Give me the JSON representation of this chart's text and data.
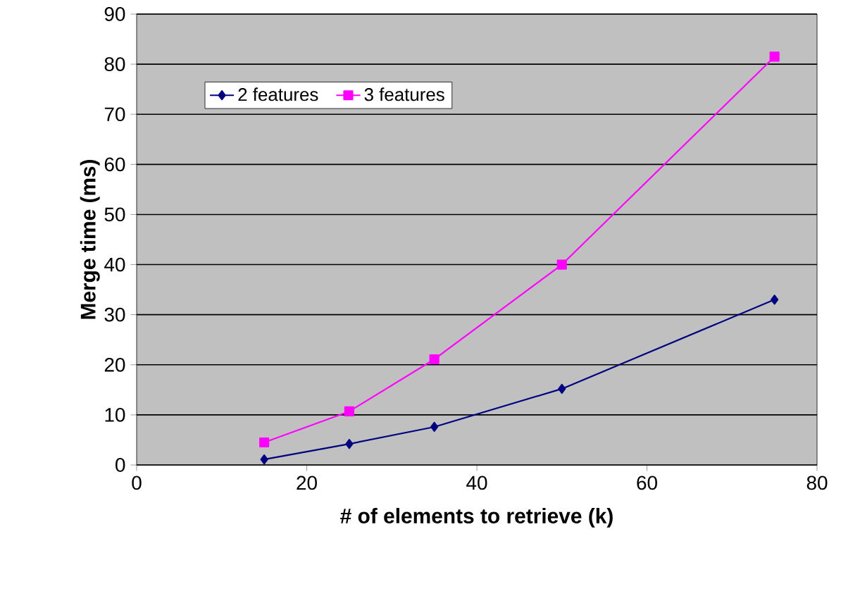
{
  "chart_data": {
    "type": "line",
    "xlabel": "# of elements to retrieve (k)",
    "ylabel": "Merge time (ms)",
    "xlim": [
      0,
      80
    ],
    "xticks": [
      0,
      20,
      40,
      60,
      80
    ],
    "ylim": [
      0,
      90
    ],
    "yticks": [
      0,
      10,
      20,
      30,
      40,
      50,
      60,
      70,
      80,
      90
    ],
    "grid": "y",
    "legend": "top left",
    "series": [
      {
        "name": "2 features",
        "color": "#000080",
        "marker": "diamond",
        "x": [
          15,
          25,
          35,
          50,
          75
        ],
        "values": [
          1.1,
          4.2,
          7.6,
          15.2,
          33
        ]
      },
      {
        "name": "3 features",
        "color": "#ff00ff",
        "marker": "square",
        "x": [
          15,
          25,
          35,
          50,
          75
        ],
        "values": [
          4.5,
          10.7,
          21.1,
          40,
          81.5
        ]
      }
    ]
  }
}
